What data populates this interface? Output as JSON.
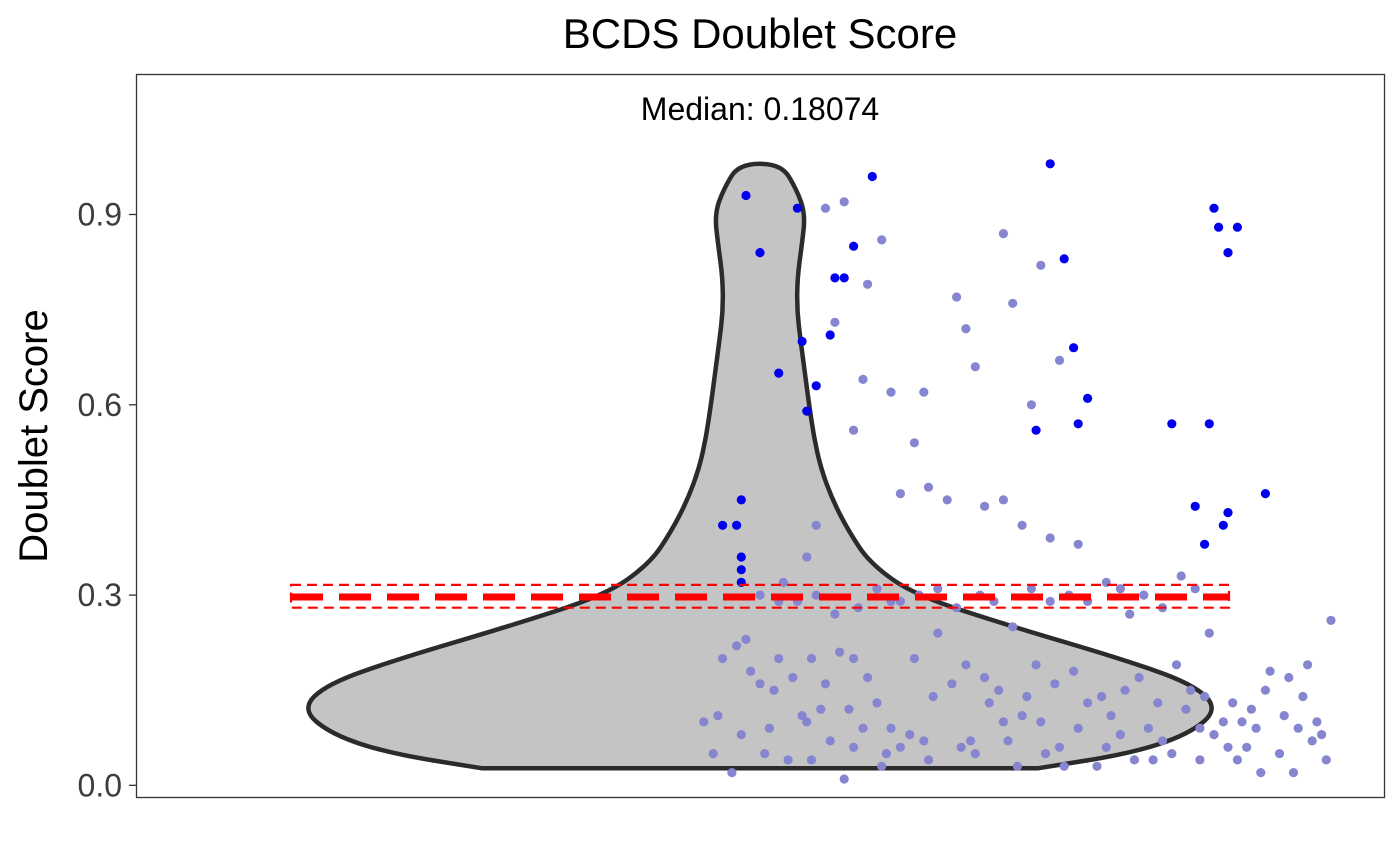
{
  "chart_data": {
    "type": "violin",
    "title": "BCDS Doublet Score",
    "subtitle": "Median: 0.18074",
    "xlabel": "",
    "ylabel": "Doublet Score",
    "ylim": [
      -0.02,
      1.12
    ],
    "yticks": [
      0.0,
      0.3,
      0.6,
      0.9
    ],
    "ytick_labels": [
      "0.0",
      "0.3",
      "0.6",
      "0.9"
    ],
    "grid": false,
    "colors": {
      "violin_fill": "#c4c4c4",
      "violin_stroke": "#2b2b2b",
      "inlier_point": "#8686d0",
      "outlier_point": "#0000ee",
      "threshold_line": "#ff0000"
    },
    "median": 0.18074,
    "threshold": {
      "value": 0.297,
      "band": [
        0.28,
        0.316
      ]
    },
    "violin_range": [
      0.027,
      0.98
    ],
    "violin_profile": [
      [
        0.027,
        0.595
      ],
      [
        0.05,
        0.79
      ],
      [
        0.08,
        0.915
      ],
      [
        0.12,
        0.98
      ],
      [
        0.16,
        0.925
      ],
      [
        0.2,
        0.77
      ],
      [
        0.25,
        0.54
      ],
      [
        0.3,
        0.33
      ],
      [
        0.35,
        0.235
      ],
      [
        0.4,
        0.19
      ],
      [
        0.45,
        0.155
      ],
      [
        0.5,
        0.13
      ],
      [
        0.55,
        0.115
      ],
      [
        0.6,
        0.105
      ],
      [
        0.65,
        0.096
      ],
      [
        0.7,
        0.087
      ],
      [
        0.75,
        0.079
      ],
      [
        0.8,
        0.08
      ],
      [
        0.85,
        0.089
      ],
      [
        0.9,
        0.097
      ],
      [
        0.94,
        0.078
      ],
      [
        0.98,
        0.045
      ]
    ],
    "points_inlier": [
      [
        -0.12,
        0.1
      ],
      [
        -0.09,
        0.11
      ],
      [
        -0.08,
        0.2
      ],
      [
        -0.04,
        0.08
      ],
      [
        -0.02,
        0.18
      ],
      [
        0.0,
        0.16
      ],
      [
        0.02,
        0.09
      ],
      [
        0.05,
        0.32
      ],
      [
        -0.05,
        0.22
      ],
      [
        -0.03,
        0.23
      ],
      [
        0.07,
        0.17
      ],
      [
        0.09,
        0.11
      ],
      [
        0.11,
        0.2
      ],
      [
        0.13,
        0.12
      ],
      [
        0.15,
        0.07
      ],
      [
        0.17,
        0.21
      ],
      [
        0.18,
        0.01
      ],
      [
        0.2,
        0.2
      ],
      [
        0.22,
        0.09
      ],
      [
        0.25,
        0.13
      ],
      [
        0.27,
        0.05
      ],
      [
        0.3,
        0.06
      ],
      [
        0.32,
        0.08
      ],
      [
        0.35,
        0.07
      ],
      [
        0.38,
        0.24
      ],
      [
        0.41,
        0.16
      ],
      [
        0.44,
        0.19
      ],
      [
        0.46,
        0.05
      ],
      [
        0.49,
        0.13
      ],
      [
        0.51,
        0.15
      ],
      [
        0.53,
        0.07
      ],
      [
        0.56,
        0.11
      ],
      [
        0.59,
        0.19
      ],
      [
        0.61,
        0.05
      ],
      [
        0.64,
        0.06
      ],
      [
        0.67,
        0.18
      ],
      [
        0.7,
        0.13
      ],
      [
        0.72,
        0.03
      ],
      [
        0.75,
        0.11
      ],
      [
        0.78,
        0.15
      ],
      [
        0.8,
        0.04
      ],
      [
        0.83,
        0.09
      ],
      [
        0.86,
        0.07
      ],
      [
        0.89,
        0.19
      ],
      [
        0.91,
        0.12
      ],
      [
        0.94,
        0.04
      ],
      [
        0.97,
        0.08
      ],
      [
        1.0,
        0.06
      ],
      [
        1.03,
        0.1
      ],
      [
        1.05,
        0.12
      ],
      [
        1.08,
        0.15
      ],
      [
        1.11,
        0.05
      ],
      [
        1.13,
        0.17
      ],
      [
        1.15,
        0.09
      ],
      [
        1.17,
        0.19
      ],
      [
        1.2,
        0.08
      ],
      [
        1.22,
        0.26
      ],
      [
        1.18,
        0.07
      ],
      [
        1.14,
        0.02
      ],
      [
        1.07,
        0.02
      ],
      [
        1.01,
        0.13
      ],
      [
        0.96,
        0.24
      ],
      [
        0.93,
        0.31
      ],
      [
        0.9,
        0.33
      ],
      [
        0.86,
        0.28
      ],
      [
        0.82,
        0.3
      ],
      [
        0.79,
        0.27
      ],
      [
        0.77,
        0.31
      ],
      [
        0.74,
        0.32
      ],
      [
        0.7,
        0.29
      ],
      [
        0.66,
        0.3
      ],
      [
        0.62,
        0.29
      ],
      [
        0.58,
        0.31
      ],
      [
        0.54,
        0.25
      ],
      [
        0.5,
        0.29
      ],
      [
        0.47,
        0.3
      ],
      [
        0.42,
        0.28
      ],
      [
        0.38,
        0.31
      ],
      [
        0.34,
        0.3
      ],
      [
        0.3,
        0.29
      ],
      [
        0.25,
        0.31
      ],
      [
        0.21,
        0.28
      ],
      [
        0.16,
        0.27
      ],
      [
        0.12,
        0.3
      ],
      [
        0.08,
        0.29
      ],
      [
        0.04,
        0.29
      ],
      [
        0.0,
        0.3
      ],
      [
        0.03,
        0.15
      ],
      [
        0.06,
        0.04
      ],
      [
        0.1,
        0.1
      ],
      [
        0.14,
        0.16
      ],
      [
        0.19,
        0.12
      ],
      [
        0.23,
        0.17
      ],
      [
        0.28,
        0.09
      ],
      [
        0.33,
        0.2
      ],
      [
        0.37,
        0.14
      ],
      [
        0.43,
        0.06
      ],
      [
        0.48,
        0.17
      ],
      [
        0.52,
        0.1
      ],
      [
        0.57,
        0.14
      ],
      [
        0.63,
        0.16
      ],
      [
        0.68,
        0.09
      ],
      [
        0.73,
        0.14
      ],
      [
        0.77,
        0.08
      ],
      [
        0.81,
        0.17
      ],
      [
        0.85,
        0.13
      ],
      [
        0.88,
        0.05
      ],
      [
        0.92,
        0.15
      ],
      [
        0.95,
        0.14
      ],
      [
        0.99,
        0.1
      ],
      [
        1.02,
        0.04
      ],
      [
        1.06,
        0.09
      ],
      [
        1.09,
        0.18
      ],
      [
        1.12,
        0.11
      ],
      [
        1.16,
        0.14
      ],
      [
        1.19,
        0.1
      ],
      [
        1.21,
        0.04
      ],
      [
        -0.1,
        0.05
      ],
      [
        -0.06,
        0.02
      ],
      [
        0.01,
        0.05
      ],
      [
        0.11,
        0.04
      ],
      [
        0.2,
        0.06
      ],
      [
        0.26,
        0.03
      ],
      [
        0.36,
        0.04
      ],
      [
        0.45,
        0.07
      ],
      [
        0.55,
        0.03
      ],
      [
        0.6,
        0.1
      ],
      [
        0.65,
        0.03
      ],
      [
        0.74,
        0.06
      ],
      [
        0.84,
        0.04
      ],
      [
        0.94,
        0.09
      ],
      [
        1.04,
        0.06
      ],
      [
        0.26,
        0.86
      ],
      [
        0.52,
        0.87
      ],
      [
        0.6,
        0.82
      ],
      [
        0.42,
        0.77
      ],
      [
        0.54,
        0.76
      ],
      [
        0.44,
        0.72
      ],
      [
        0.46,
        0.66
      ],
      [
        0.64,
        0.67
      ],
      [
        0.22,
        0.64
      ],
      [
        0.58,
        0.6
      ],
      [
        0.35,
        0.62
      ],
      [
        0.33,
        0.54
      ],
      [
        0.23,
        0.79
      ],
      [
        0.18,
        0.92
      ],
      [
        0.14,
        0.91
      ],
      [
        0.16,
        0.73
      ],
      [
        0.2,
        0.56
      ],
      [
        0.28,
        0.62
      ],
      [
        0.36,
        0.47
      ],
      [
        0.4,
        0.45
      ],
      [
        0.48,
        0.44
      ],
      [
        0.52,
        0.45
      ],
      [
        0.56,
        0.41
      ],
      [
        0.62,
        0.39
      ],
      [
        0.68,
        0.38
      ],
      [
        0.3,
        0.46
      ],
      [
        0.12,
        0.41
      ],
      [
        0.1,
        0.36
      ],
      [
        0.04,
        0.2
      ],
      [
        0.28,
        0.29
      ]
    ],
    "points_outlier": [
      [
        -0.03,
        0.93
      ],
      [
        0.08,
        0.91
      ],
      [
        0.24,
        0.96
      ],
      [
        0.62,
        0.98
      ],
      [
        0.97,
        0.91
      ],
      [
        0.98,
        0.88
      ],
      [
        1.02,
        0.88
      ],
      [
        0.0,
        0.84
      ],
      [
        0.2,
        0.85
      ],
      [
        1.0,
        0.84
      ],
      [
        0.16,
        0.8
      ],
      [
        0.18,
        0.8
      ],
      [
        0.65,
        0.83
      ],
      [
        0.15,
        0.71
      ],
      [
        0.09,
        0.7
      ],
      [
        0.67,
        0.69
      ],
      [
        0.04,
        0.65
      ],
      [
        0.12,
        0.63
      ],
      [
        0.7,
        0.61
      ],
      [
        0.1,
        0.59
      ],
      [
        0.68,
        0.57
      ],
      [
        0.88,
        0.57
      ],
      [
        0.96,
        0.57
      ],
      [
        0.59,
        0.56
      ],
      [
        -0.04,
        0.45
      ],
      [
        1.08,
        0.46
      ],
      [
        0.93,
        0.44
      ],
      [
        1.0,
        0.43
      ],
      [
        0.99,
        0.41
      ],
      [
        -0.08,
        0.41
      ],
      [
        -0.05,
        0.41
      ],
      [
        -0.04,
        0.36
      ],
      [
        0.95,
        0.38
      ],
      [
        -0.04,
        0.34
      ],
      [
        -0.04,
        0.32
      ]
    ]
  }
}
